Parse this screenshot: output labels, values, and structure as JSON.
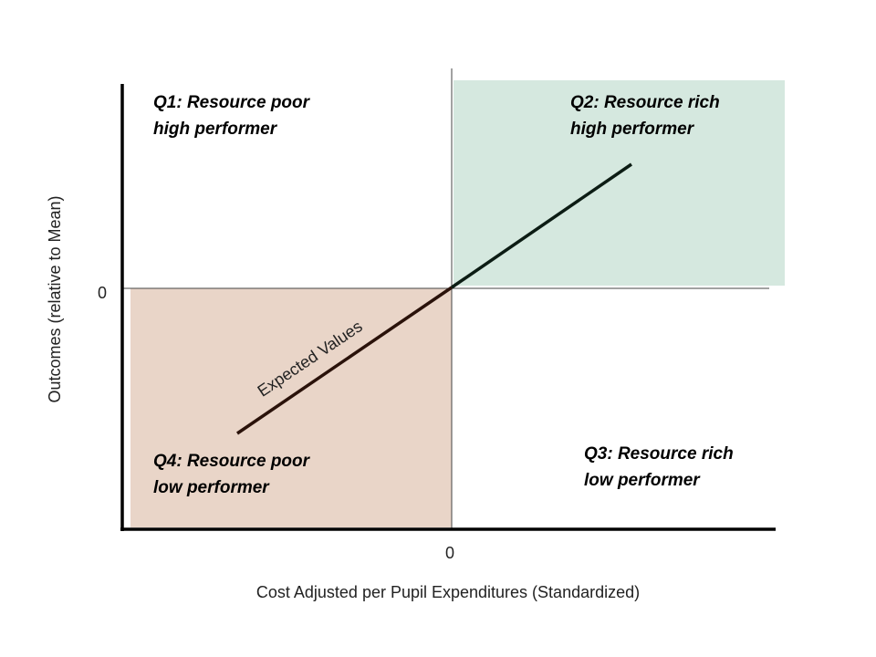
{
  "diagram": {
    "quadrants": [
      {
        "lines": [
          "Q1: Resource poor",
          "high performer"
        ]
      },
      {
        "lines": [
          "Q2: Resource rich",
          "high performer"
        ]
      },
      {
        "lines": [
          "Q3: Resource rich",
          "low performer"
        ]
      },
      {
        "lines": [
          "Q4: Resource poor",
          "low performer"
        ]
      }
    ],
    "line_label": "Expected Values",
    "x_origin_label": "0",
    "y_origin_label": "0",
    "x_axis_label": "Cost Adjusted per Pupil Expenditures (Standardized)",
    "y_axis_label": "Outcomes (relative to Mean)"
  }
}
